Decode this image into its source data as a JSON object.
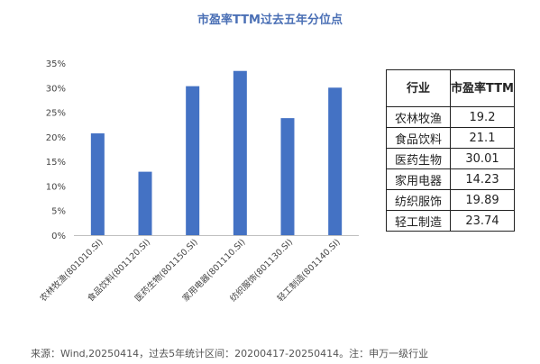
{
  "chart_data": {
    "type": "bar",
    "title": "市盈率TTM过去五年分位点",
    "categories": [
      "农林牧渔(801010.SI)",
      "食品饮料(801120.SI)",
      "医药生物(801150.SI)",
      "家用电器(801110.SI)",
      "纺织服饰(801130.SI)",
      "轻工制造(801140.SI)"
    ],
    "series": [
      {
        "values": [
          20.7,
          12.9,
          30.3,
          33.4,
          23.8,
          30.0
        ]
      }
    ],
    "y_ticks": [
      "0%",
      "5%",
      "10%",
      "15%",
      "20%",
      "25%",
      "30%",
      "35%"
    ],
    "ylim": [
      0,
      35
    ],
    "unit": "%",
    "grid": false,
    "bar_color": "#4472c4"
  },
  "table": {
    "headers": [
      "行业",
      "市盈率TTM"
    ],
    "rows": [
      [
        "农林牧渔",
        "19.2"
      ],
      [
        "食品饮料",
        "21.1"
      ],
      [
        "医药生物",
        "30.01"
      ],
      [
        "家用电器",
        "14.23"
      ],
      [
        "纺织服饰",
        "19.89"
      ],
      [
        "轻工制造",
        "23.74"
      ]
    ]
  },
  "source_note": "来源：Wind,20250414，过去5年统计区间：20200417-20250414。注：申万一级行业"
}
